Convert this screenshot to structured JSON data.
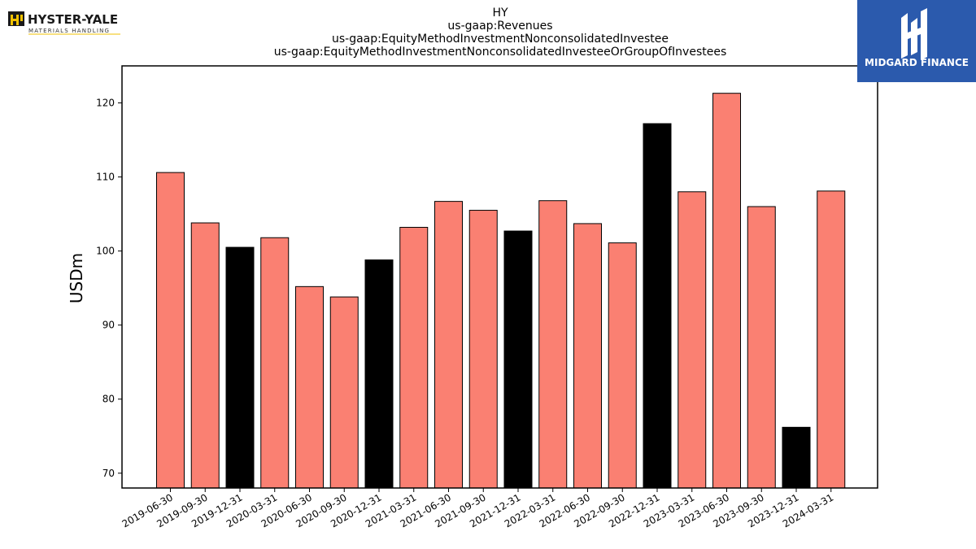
{
  "chart_data": {
    "type": "bar",
    "title": [
      "HY",
      "us-gaap:Revenues",
      "us-gaap:EquityMethodInvestmentNonconsolidatedInvestee",
      "us-gaap:EquityMethodInvestmentNonconsolidatedInvesteeOrGroupOfInvestees"
    ],
    "ylabel": "USDm",
    "xlabel": "",
    "ylim": [
      68,
      125
    ],
    "yticks": [
      70,
      80,
      90,
      100,
      110,
      120
    ],
    "grid": false,
    "categories": [
      "2019-06-30",
      "2019-09-30",
      "2019-12-31",
      "2020-03-31",
      "2020-06-30",
      "2020-09-30",
      "2020-12-31",
      "2021-03-31",
      "2021-06-30",
      "2021-09-30",
      "2021-12-31",
      "2022-03-31",
      "2022-06-30",
      "2022-09-30",
      "2022-12-31",
      "2023-03-31",
      "2023-06-30",
      "2023-09-30",
      "2023-12-31",
      "2024-03-31"
    ],
    "values": [
      110.6,
      103.8,
      100.5,
      101.8,
      95.2,
      93.8,
      98.8,
      103.2,
      106.7,
      105.5,
      102.7,
      106.8,
      103.7,
      101.1,
      117.2,
      108.0,
      121.3,
      106.0,
      76.2,
      108.1
    ],
    "bar_colors": [
      "#fa8072",
      "#fa8072",
      "#000000",
      "#fa8072",
      "#fa8072",
      "#fa8072",
      "#000000",
      "#fa8072",
      "#fa8072",
      "#fa8072",
      "#000000",
      "#fa8072",
      "#fa8072",
      "#fa8072",
      "#000000",
      "#fa8072",
      "#fa8072",
      "#fa8072",
      "#000000",
      "#fa8072"
    ]
  },
  "logos": {
    "left_brand": "HYSTER-YALE",
    "left_sub": "MATERIALS HANDLING",
    "right_brand": "MIDGARD FINANCE",
    "right_bg": "#2b5aad"
  }
}
